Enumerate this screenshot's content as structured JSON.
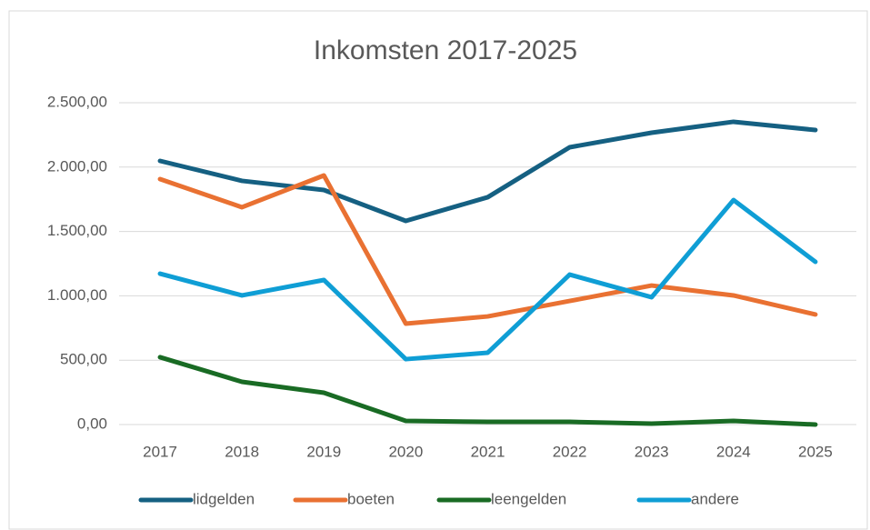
{
  "chart_data": {
    "type": "line",
    "title": "Inkomsten 2017-2025",
    "categories": [
      "2017",
      "2018",
      "2019",
      "2020",
      "2021",
      "2022",
      "2023",
      "2024",
      "2025"
    ],
    "series": [
      {
        "name": "lidgelden",
        "color": "#156082",
        "values": [
          2048,
          1893,
          1822,
          1582,
          1766,
          2154,
          2267,
          2352,
          2288
        ]
      },
      {
        "name": "boeten",
        "color": "#E97132",
        "values": [
          1907,
          1688,
          1935,
          784,
          840,
          960,
          1080,
          1003,
          855
        ]
      },
      {
        "name": "leengelden",
        "color": "#196B24",
        "values": [
          523,
          332,
          247,
          28,
          21,
          21,
          7,
          28,
          0
        ]
      },
      {
        "name": "andere",
        "color": "#0F9ED5",
        "values": [
          1172,
          1003,
          1123,
          508,
          558,
          1165,
          989,
          1744,
          1264
        ]
      }
    ],
    "ylim": [
      0,
      2500
    ],
    "yticks": [
      {
        "value": 0,
        "label": "0,00"
      },
      {
        "value": 500,
        "label": "500,00"
      },
      {
        "value": 1000,
        "label": "1.000,00"
      },
      {
        "value": 1500,
        "label": "1.500,00"
      },
      {
        "value": 2000,
        "label": "2.000,00"
      },
      {
        "value": 2500,
        "label": "2.500,00"
      }
    ],
    "grid": true,
    "legend": "bottom"
  }
}
